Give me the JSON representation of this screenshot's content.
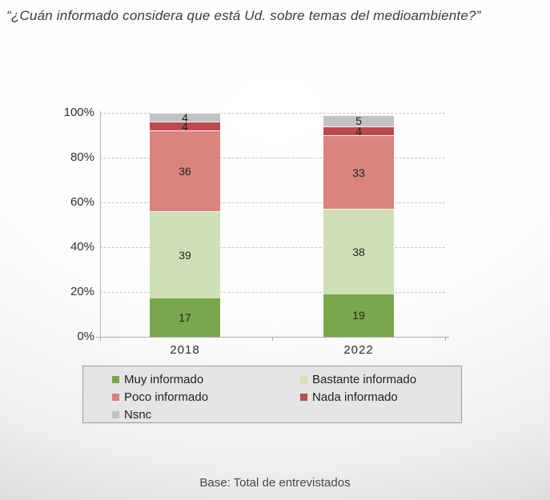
{
  "title": "“¿Cuán informado considera que está Ud. sobre temas del medioambiente?”",
  "base_note": "Base: Total de entrevistados",
  "chart_data": {
    "type": "bar",
    "stacked": true,
    "title": "¿Cuán informado considera que está Ud. sobre temas del medioambiente?",
    "categories": [
      "2018",
      "2022"
    ],
    "series": [
      {
        "name": "Muy informado",
        "color": "#79a74c",
        "values": [
          17,
          19
        ]
      },
      {
        "name": "Bastante informado",
        "color": "#cfe0b6",
        "values": [
          39,
          38
        ]
      },
      {
        "name": "Poco informado",
        "color": "#d9847d",
        "values": [
          36,
          33
        ]
      },
      {
        "name": "Nada informado",
        "color": "#bc4a50",
        "values": [
          4,
          4
        ]
      },
      {
        "name": "Nsnc",
        "color": "#c2c2c2",
        "values": [
          4,
          5
        ]
      }
    ],
    "xlabel": "",
    "ylabel": "",
    "ylim": [
      0,
      100
    ],
    "y_ticks": [
      "0%",
      "20%",
      "40%",
      "60%",
      "80%",
      "100%"
    ],
    "grid": "horizontal-dashed",
    "legend_position": "bottom-box",
    "value_labels": "inside-segments"
  }
}
